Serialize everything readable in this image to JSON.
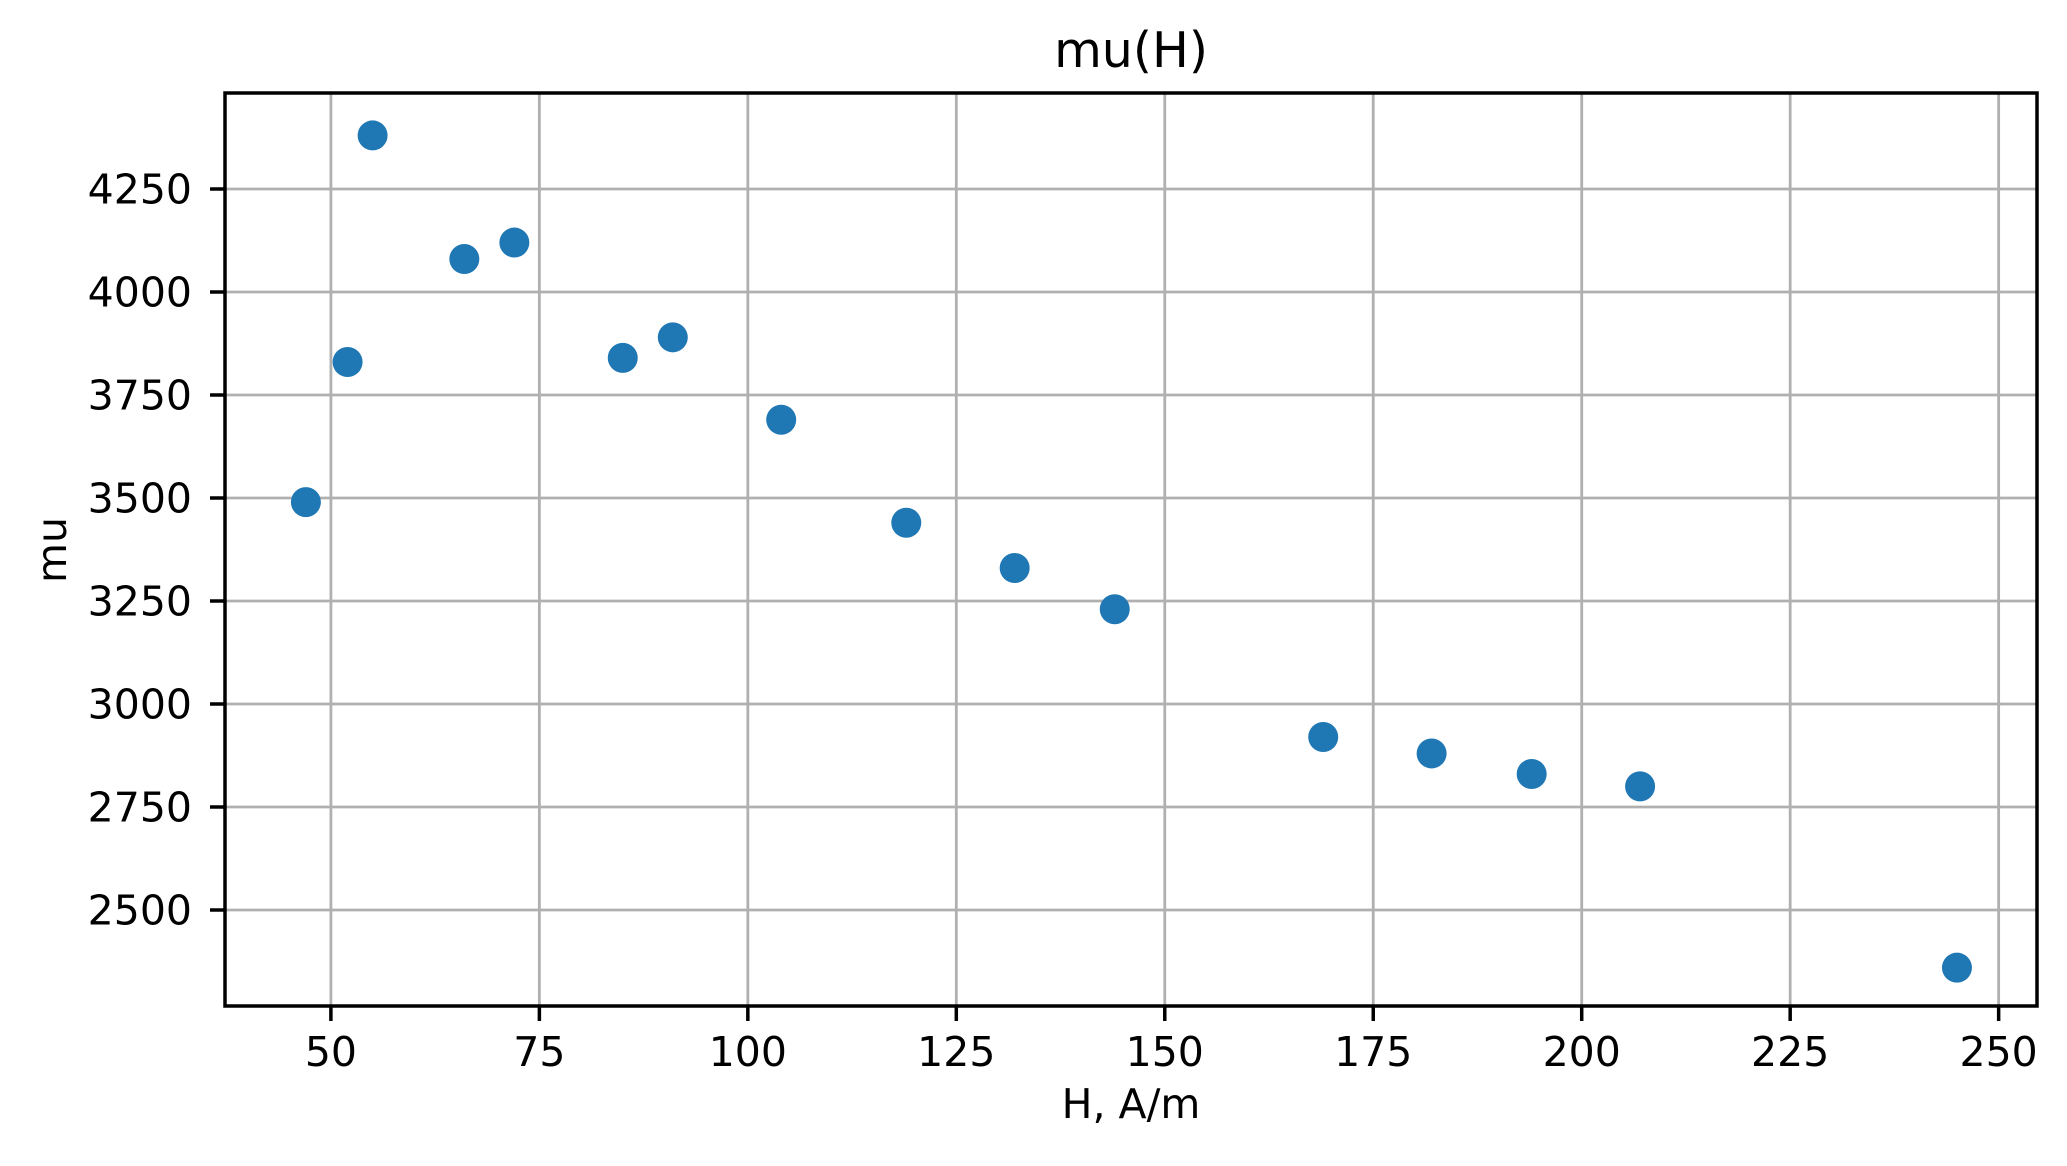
{
  "figure": {
    "background": "#ffffff"
  },
  "chart_data": {
    "type": "scatter",
    "title": "mu(H)",
    "xlabel": "H, A/m",
    "ylabel": "mu",
    "x": [
      47,
      52,
      55,
      66,
      72,
      85,
      91,
      104,
      119,
      132,
      144,
      169,
      182,
      194,
      207,
      245
    ],
    "y": [
      3490,
      3830,
      4380,
      4080,
      4120,
      3840,
      3890,
      3690,
      3440,
      3330,
      3230,
      2920,
      2880,
      2830,
      2800,
      2360
    ],
    "x_ticks": [
      50,
      75,
      100,
      125,
      150,
      175,
      200,
      225,
      250
    ],
    "y_ticks": [
      2500,
      2750,
      3000,
      3250,
      3500,
      3750,
      4000,
      4250
    ],
    "xlim": [
      37.3,
      254.6
    ],
    "ylim": [
      2267,
      4483
    ],
    "grid": true,
    "legend": null,
    "marker_color": "#1f77b4",
    "grid_color": "#b0b0b0",
    "spine_color": "#000000",
    "tick_color": "#000000",
    "marker_radius_px": 15
  }
}
